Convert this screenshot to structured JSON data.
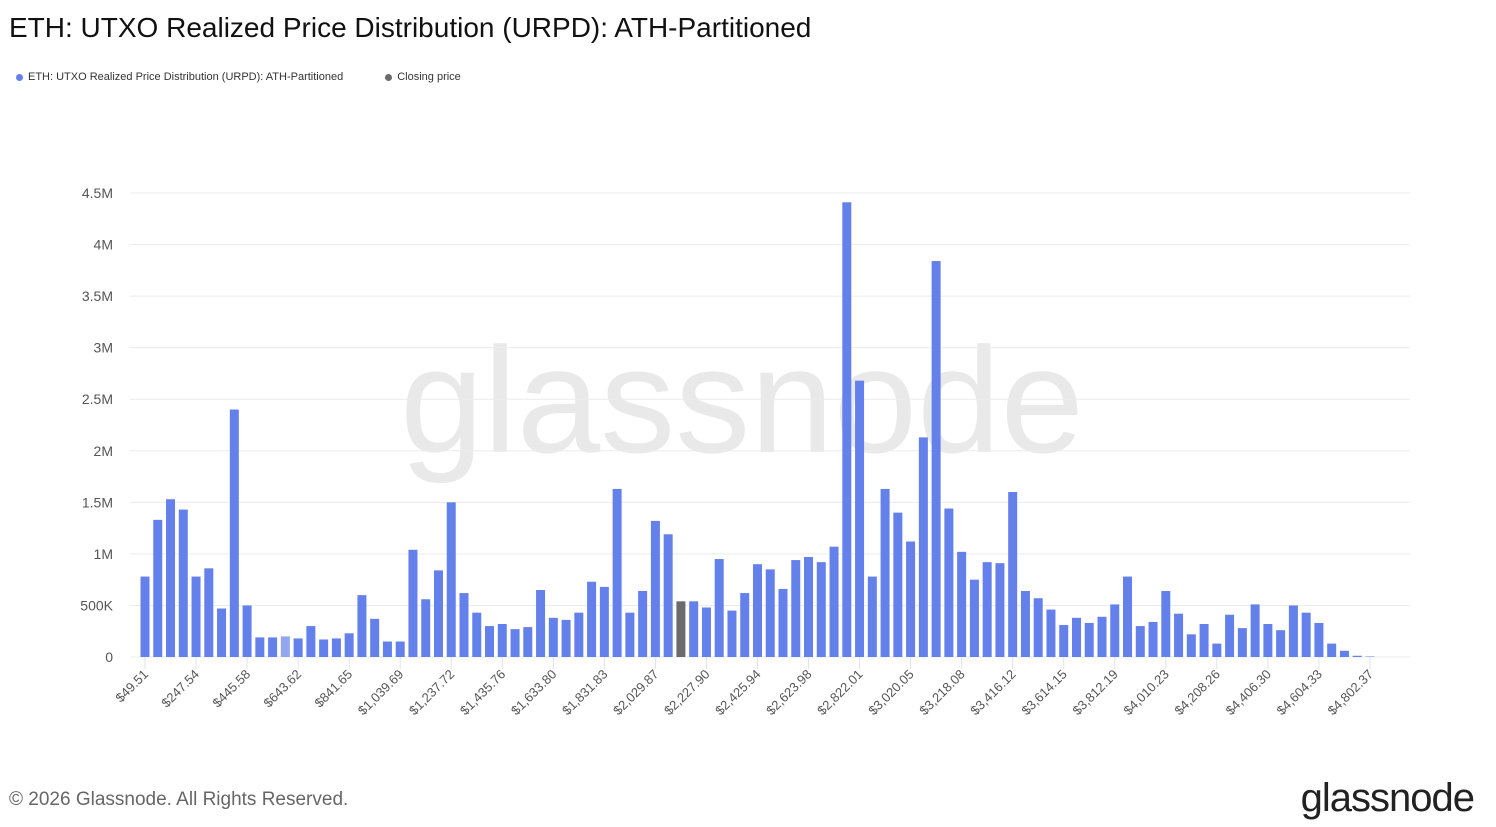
{
  "title": "ETH: UTXO Realized Price Distribution (URPD): ATH-Partitioned",
  "legend": [
    {
      "label": "ETH: UTXO Realized Price Distribution (URPD): ATH-Partitioned",
      "color": "#6480EA"
    },
    {
      "label": "Closing price",
      "color": "#6b6b6b"
    }
  ],
  "footer": "© 2026 Glassnode. All Rights Reserved.",
  "brand": "glassnode",
  "watermark": "glassnode",
  "chart_data": {
    "type": "bar",
    "title": "ETH: UTXO Realized Price Distribution (URPD): ATH-Partitioned",
    "xlabel": "",
    "ylabel": "",
    "ylim": [
      0,
      4500000
    ],
    "grid": true,
    "legend_position": "top-left",
    "y_ticks": [
      {
        "value": 0,
        "label": "0"
      },
      {
        "value": 500000,
        "label": "500K"
      },
      {
        "value": 1000000,
        "label": "1M"
      },
      {
        "value": 1500000,
        "label": "1.5M"
      },
      {
        "value": 2000000,
        "label": "2M"
      },
      {
        "value": 2500000,
        "label": "2.5M"
      },
      {
        "value": 3000000,
        "label": "3M"
      },
      {
        "value": 3500000,
        "label": "3.5M"
      },
      {
        "value": 4000000,
        "label": "4M"
      },
      {
        "value": 4500000,
        "label": "4.5M"
      }
    ],
    "x_tick_every": 4,
    "x_tick_labels": [
      "$49.51",
      "$247.54",
      "$445.58",
      "$643.62",
      "$841.65",
      "$1,039.69",
      "$1,237.72",
      "$1,435.76",
      "$1,633.80",
      "$1,831.83",
      "$2,029.87",
      "$2,227.90",
      "$2,425.94",
      "$2,623.98",
      "$2,822.01",
      "$3,020.05",
      "$3,218.08",
      "$3,416.12",
      "$3,614.15",
      "$3,812.19",
      "$4,010.23",
      "$4,208.26",
      "$4,406.30",
      "$4,604.33",
      "$4,802.37"
    ],
    "closing_price_bin_index": 42,
    "highlighted_bin_index": 11,
    "series": [
      {
        "name": "ETH: UTXO Realized Price Distribution (URPD): ATH-Partitioned",
        "values": [
          780000,
          1330000,
          1530000,
          1430000,
          780000,
          860000,
          470000,
          2400000,
          500000,
          190000,
          190000,
          200000,
          180000,
          300000,
          170000,
          180000,
          230000,
          600000,
          370000,
          150000,
          150000,
          1040000,
          560000,
          840000,
          1500000,
          620000,
          430000,
          300000,
          320000,
          270000,
          290000,
          650000,
          380000,
          360000,
          430000,
          730000,
          680000,
          1630000,
          430000,
          640000,
          1320000,
          1190000,
          540000,
          540000,
          480000,
          950000,
          450000,
          620000,
          900000,
          850000,
          660000,
          940000,
          970000,
          920000,
          1070000,
          4410000,
          2680000,
          780000,
          1630000,
          1400000,
          1120000,
          2130000,
          3840000,
          1440000,
          1020000,
          750000,
          920000,
          910000,
          1600000,
          640000,
          570000,
          460000,
          310000,
          380000,
          330000,
          390000,
          510000,
          780000,
          300000,
          340000,
          640000,
          420000,
          220000,
          320000,
          130000,
          410000,
          280000,
          510000,
          320000,
          260000,
          500000,
          430000,
          330000,
          130000,
          60000,
          12000,
          5000
        ]
      }
    ]
  }
}
